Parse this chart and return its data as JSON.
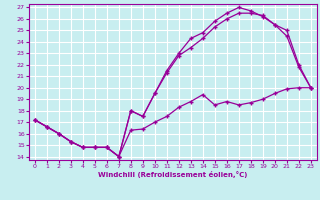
{
  "xlabel": "Windchill (Refroidissement éolien,°C)",
  "bg_color": "#c8eef0",
  "line_color": "#990099",
  "grid_color": "#ffffff",
  "xlim": [
    -0.5,
    23.5
  ],
  "ylim": [
    13.7,
    27.3
  ],
  "xticks": [
    0,
    1,
    2,
    3,
    4,
    5,
    6,
    7,
    8,
    9,
    10,
    11,
    12,
    13,
    14,
    15,
    16,
    17,
    18,
    19,
    20,
    21,
    22,
    23
  ],
  "yticks": [
    14,
    15,
    16,
    17,
    18,
    19,
    20,
    21,
    22,
    23,
    24,
    25,
    26,
    27
  ],
  "curve1_x": [
    0,
    1,
    2,
    3,
    4,
    5,
    6,
    7,
    8,
    9,
    10,
    11,
    12,
    13,
    14,
    15,
    16,
    17,
    18,
    19,
    20,
    21,
    22,
    23
  ],
  "curve1_y": [
    17.2,
    16.6,
    16.0,
    15.3,
    14.8,
    14.8,
    14.8,
    14.0,
    16.3,
    16.4,
    17.0,
    17.5,
    18.3,
    18.8,
    19.4,
    18.5,
    18.8,
    18.5,
    18.7,
    19.0,
    19.5,
    19.9,
    20.0,
    20.0
  ],
  "curve2_x": [
    0,
    1,
    2,
    3,
    4,
    5,
    6,
    7,
    8,
    9,
    10,
    11,
    12,
    13,
    14,
    15,
    16,
    17,
    18,
    19,
    20,
    21,
    22,
    23
  ],
  "curve2_y": [
    17.2,
    16.6,
    16.0,
    15.3,
    14.8,
    14.8,
    14.8,
    14.0,
    18.0,
    17.5,
    19.5,
    21.3,
    22.8,
    23.5,
    24.3,
    25.3,
    26.0,
    26.5,
    26.5,
    26.3,
    25.5,
    24.5,
    21.8,
    20.0
  ],
  "curve3_x": [
    0,
    1,
    2,
    3,
    4,
    5,
    6,
    7,
    8,
    9,
    10,
    11,
    12,
    13,
    14,
    15,
    16,
    17,
    18,
    19,
    20,
    21,
    22,
    23
  ],
  "curve3_y": [
    17.2,
    16.6,
    16.0,
    15.3,
    14.8,
    14.8,
    14.8,
    14.0,
    18.0,
    17.5,
    19.5,
    21.5,
    23.0,
    24.3,
    24.8,
    25.8,
    26.5,
    27.0,
    26.7,
    26.2,
    25.5,
    25.0,
    22.0,
    20.0
  ]
}
